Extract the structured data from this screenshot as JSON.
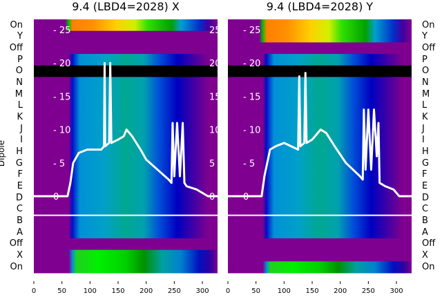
{
  "ylabel": "Dipole",
  "row_labels": [
    "On",
    "Y",
    "Off",
    "P",
    "O",
    "N",
    "M",
    "L",
    "K",
    "J",
    "I",
    "H",
    "G",
    "F",
    "E",
    "D",
    "C",
    "B",
    "A",
    "Off",
    "X",
    "On"
  ],
  "chart_data": [
    {
      "type": "heatmap",
      "title": "9.4 (LBD4=2028) X",
      "xlim": [
        0,
        327
      ],
      "xticks": [
        0,
        50,
        100,
        150,
        200,
        250,
        300
      ],
      "line_ylim": [
        0,
        25
      ],
      "line_yticks": [
        0,
        5,
        10,
        15,
        20,
        25
      ],
      "colored_top_rows": [
        "On"
      ],
      "colored_bottom_rows": [
        "X",
        "On"
      ],
      "masked_row": "O",
      "separator_between": [
        "C",
        "B"
      ],
      "line_series": {
        "x": [
          0,
          60,
          65,
          70,
          80,
          95,
          120,
          125,
          126,
          127,
          134,
          136,
          138,
          150,
          160,
          165,
          175,
          190,
          200,
          220,
          240,
          245,
          247,
          250,
          255,
          260,
          265,
          268,
          272,
          290,
          300,
          310,
          327
        ],
        "y": [
          0,
          0,
          2,
          5,
          6.5,
          7,
          7,
          7.5,
          20,
          7.5,
          8,
          20,
          8,
          8.5,
          9,
          10,
          9,
          7,
          5.5,
          4,
          2.5,
          2,
          11,
          3,
          11,
          3,
          11,
          2,
          1.5,
          1,
          0.5,
          0,
          0
        ]
      }
    },
    {
      "type": "heatmap",
      "title": "9.4 (LBD4=2028) Y",
      "xlim": [
        0,
        327
      ],
      "xticks": [
        0,
        50,
        100,
        150,
        200,
        250,
        300
      ],
      "line_ylim": [
        0,
        25
      ],
      "line_yticks": [
        0,
        5,
        10,
        15,
        20,
        25
      ],
      "colored_top_rows": [
        "On",
        "Y"
      ],
      "colored_bottom_rows": [
        "On"
      ],
      "masked_row": "O",
      "separator_between": [
        "C",
        "B"
      ],
      "line_series": {
        "x": [
          0,
          60,
          65,
          75,
          85,
          100,
          125,
          127,
          129,
          136,
          138,
          140,
          150,
          165,
          175,
          190,
          210,
          235,
          240,
          242,
          245,
          250,
          255,
          260,
          265,
          268,
          270,
          280,
          295,
          305,
          327
        ],
        "y": [
          0,
          0,
          3,
          7,
          7.5,
          8,
          7,
          18,
          7.5,
          8,
          18.5,
          8,
          8.5,
          10,
          9.5,
          7.5,
          5,
          3,
          2.5,
          13,
          4,
          13,
          4,
          13,
          6,
          11,
          2,
          1.5,
          1,
          0,
          0
        ]
      }
    }
  ]
}
